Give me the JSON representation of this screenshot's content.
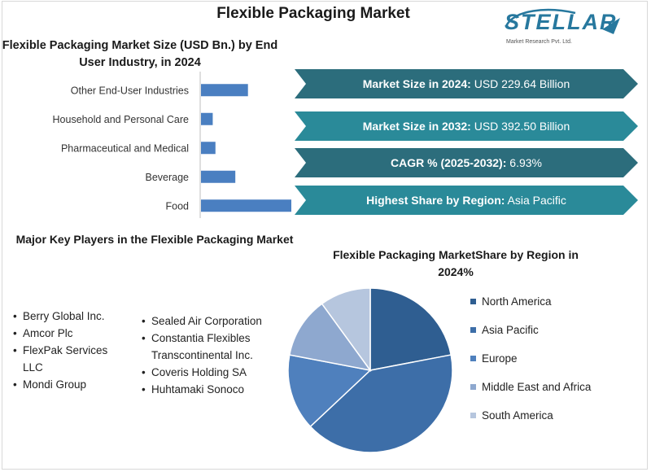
{
  "title": "Flexible Packaging Market",
  "logo": {
    "brand": "STELLAR",
    "tagline": "Market Research Pvt. Ltd.",
    "color": "#27789e"
  },
  "banners": [
    {
      "label": "Market Size in 2024:",
      "value": " USD 229.64 Billion",
      "color": "#2c6d7c"
    },
    {
      "label": "Market Size in 2032:",
      "value": " USD 392.50 Billion",
      "color": "#2a8a99"
    },
    {
      "label": "CAGR % (2025-2032):",
      "value": " 6.93%",
      "color": "#2c6d7c"
    },
    {
      "label": "Highest Share by Region:",
      "value": " Asia Pacific",
      "color": "#2a8a99"
    }
  ],
  "key_players": {
    "title": "Major Key Players in the Flexible Packaging Market",
    "column1": [
      "Berry Global Inc.",
      "Amcor Plc",
      "FlexPak Services LLC",
      "Mondi Group"
    ],
    "column2": [
      "Sealed Air Corporation",
      "Constantia Flexibles Transcontinental Inc.",
      "Coveris Holding SA",
      "Huhtamaki Sonoco"
    ]
  },
  "chart_data": [
    {
      "type": "bar",
      "orientation": "horizontal",
      "title": "Flexible Packaging Market Size (USD Bn.) by End User Industry, in 2024",
      "categories": [
        "Other End-User Industries",
        "Household and Personal Care",
        "Pharmaceutical and Medical",
        "Beverage",
        "Food"
      ],
      "values": [
        52,
        13,
        16,
        38,
        100
      ],
      "color": "#4a7fc1",
      "grid": false
    },
    {
      "type": "pie",
      "title": "Flexible Packaging MarketShare by Region in 2024%",
      "categories": [
        "North America",
        "Asia Pacific",
        "Europe",
        "Middle East and Africa",
        "South America"
      ],
      "values": [
        22,
        41,
        15,
        12,
        10
      ],
      "colors": [
        "#2f5e91",
        "#3d6ea8",
        "#4f80bd",
        "#8ea8cf",
        "#b6c6de"
      ],
      "legend": "right"
    }
  ]
}
